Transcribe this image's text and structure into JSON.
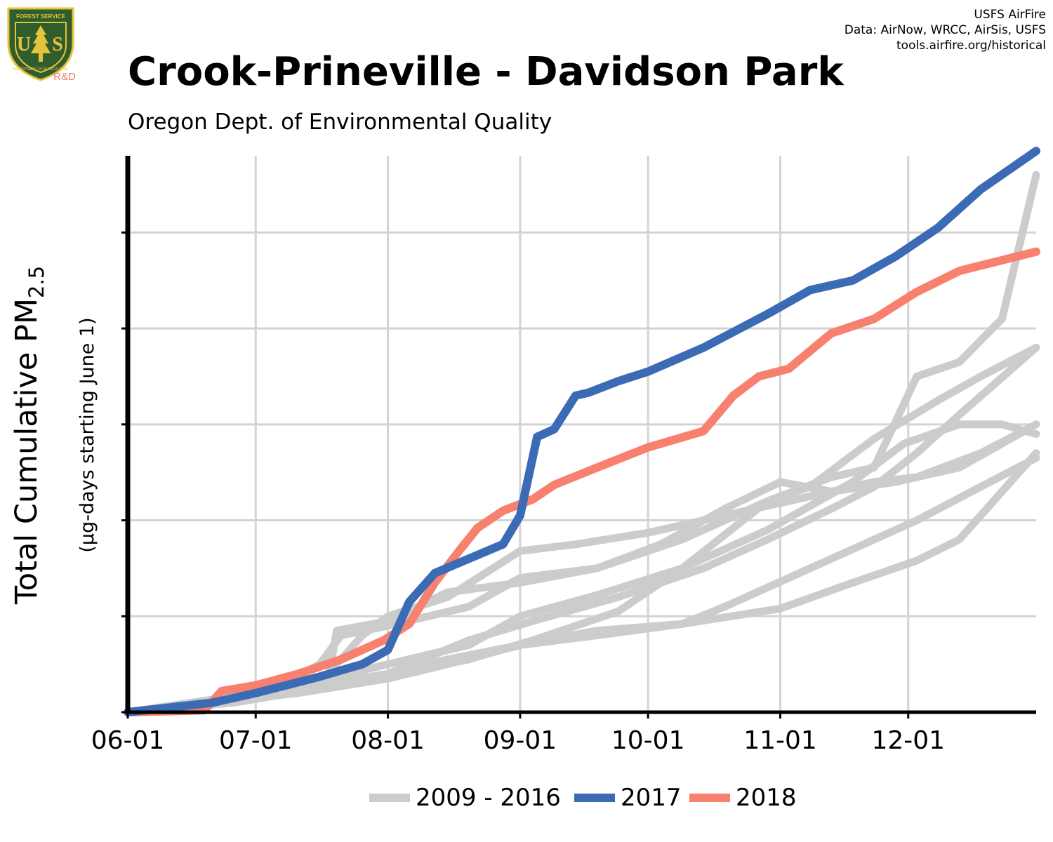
{
  "credits": {
    "line1": "USFS AirFire",
    "line2": "Data: AirNow, WRCC, AirSis, USFS",
    "line3": "tools.airfire.org/historical"
  },
  "logo": {
    "top_text": "FOREST SERVICE",
    "letters": "US",
    "bottom_text": "DEPARTMENT OF AGRICULTURE",
    "badge": "R&D"
  },
  "title": "Crook-Prineville - Davidson Park",
  "subtitle": "Oregon Dept. of Environmental Quality",
  "colors": {
    "history": "#cccccc",
    "y2017": "#3a6bb4",
    "y2018": "#f8806e",
    "grid": "#d3d3d3",
    "axis": "#000000"
  },
  "chart_data": {
    "type": "line",
    "title": "Crook-Prineville - Davidson Park",
    "subtitle": "Oregon Dept. of Environmental Quality",
    "ylabel_main": "Total Cumulative PM",
    "ylabel_sub": "2.5",
    "ylabel_unit": "(µg-days starting June 1)",
    "xlabel": "",
    "x_tick_labels": [
      "06-01",
      "07-01",
      "08-01",
      "09-01",
      "10-01",
      "11-01",
      "12-01"
    ],
    "x_tick_days": [
      0,
      30,
      61,
      92,
      122,
      153,
      183
    ],
    "xlim_days": [
      0,
      213
    ],
    "y_tick_values": [
      0,
      1,
      2,
      3,
      4,
      5,
      6
    ],
    "y_tick_labels_visible": false,
    "ylim": [
      0,
      5.8
    ],
    "grid": true,
    "legend_position": "bottom",
    "legend": [
      {
        "label": "2009 - 2016",
        "color": "#cccccc"
      },
      {
        "label": "2017",
        "color": "#3a6bb4"
      },
      {
        "label": "2018",
        "color": "#f8806e"
      }
    ],
    "series": [
      {
        "name": "2009 - 2016",
        "group": "history",
        "x": [
          0,
          15,
          30,
          45,
          55,
          61,
          75,
          92,
          105,
          122,
          130,
          140,
          153,
          165,
          180,
          195,
          205,
          213
        ],
        "y": [
          0,
          0.1,
          0.2,
          0.3,
          0.8,
          1.0,
          1.2,
          1.68,
          1.75,
          1.87,
          1.95,
          2.05,
          2.18,
          2.3,
          2.4,
          2.55,
          2.8,
          3.0
        ]
      },
      {
        "name": "2009 - 2016",
        "group": "history",
        "x": [
          0,
          20,
          40,
          61,
          75,
          92,
          110,
          130,
          153,
          170,
          185,
          195,
          213
        ],
        "y": [
          0,
          0.1,
          0.25,
          0.4,
          0.55,
          0.7,
          0.8,
          0.92,
          1.08,
          1.35,
          1.58,
          1.8,
          2.7
        ]
      },
      {
        "name": "2009 - 2016",
        "group": "history",
        "x": [
          0,
          25,
          45,
          61,
          80,
          95,
          115,
          135,
          150,
          165,
          175,
          185,
          195,
          213
        ],
        "y": [
          0,
          0.1,
          0.25,
          0.4,
          0.75,
          0.95,
          1.2,
          1.5,
          1.8,
          2.12,
          2.35,
          2.7,
          3.1,
          3.8
        ]
      },
      {
        "name": "2009 - 2016",
        "group": "history",
        "x": [
          0,
          20,
          40,
          61,
          80,
          92,
          110,
          130,
          150,
          170,
          182,
          195,
          205,
          213
        ],
        "y": [
          0,
          0.12,
          0.28,
          0.5,
          0.7,
          1.0,
          1.22,
          1.5,
          1.9,
          2.4,
          2.8,
          3.0,
          3.0,
          2.9
        ]
      },
      {
        "name": "2009 - 2016",
        "group": "history",
        "x": [
          0,
          20,
          40,
          61,
          75,
          92,
          110,
          130,
          140,
          155,
          170,
          185,
          200,
          213
        ],
        "y": [
          0,
          0.1,
          0.2,
          0.35,
          0.5,
          0.7,
          0.85,
          0.92,
          1.1,
          1.4,
          1.7,
          2.0,
          2.35,
          2.65
        ]
      },
      {
        "name": "2009 - 2016",
        "group": "history",
        "x": [
          0,
          20,
          40,
          61,
          80,
          95,
          115,
          130,
          150,
          160,
          175,
          190,
          200,
          213
        ],
        "y": [
          0,
          0.1,
          0.22,
          0.38,
          0.55,
          0.75,
          1.05,
          1.5,
          2.2,
          2.35,
          2.85,
          3.25,
          3.5,
          3.8
        ]
      },
      {
        "name": "2009 - 2016",
        "group": "history",
        "x": [
          0,
          20,
          35,
          45,
          50,
          61,
          80,
          92,
          110,
          130,
          150,
          165,
          175,
          185,
          195,
          205,
          213
        ],
        "y": [
          0,
          0.1,
          0.25,
          0.5,
          0.8,
          0.9,
          1.1,
          1.4,
          1.5,
          1.8,
          2.2,
          2.45,
          2.55,
          3.5,
          3.65,
          4.1,
          5.6
        ]
      },
      {
        "name": "2009 - 2016",
        "group": "history",
        "x": [
          0,
          20,
          40,
          47,
          49,
          61,
          75,
          92,
          110,
          125,
          140,
          153,
          165,
          175,
          185,
          200,
          213
        ],
        "y": [
          0,
          0.1,
          0.25,
          0.35,
          0.85,
          0.95,
          1.25,
          1.35,
          1.5,
          1.75,
          2.12,
          2.4,
          2.3,
          2.4,
          2.45,
          2.7,
          3.0
        ]
      },
      {
        "name": "2017",
        "group": "y2017",
        "x": [
          0,
          10,
          20,
          30,
          45,
          55,
          61,
          66,
          72,
          80,
          88,
          92,
          96,
          100,
          105,
          108,
          115,
          122,
          135,
          150,
          160,
          170,
          180,
          190,
          200,
          213
        ],
        "y": [
          0,
          0.05,
          0.1,
          0.2,
          0.37,
          0.5,
          0.65,
          1.15,
          1.45,
          1.6,
          1.75,
          2.05,
          2.87,
          2.95,
          3.3,
          3.33,
          3.45,
          3.55,
          3.8,
          4.15,
          4.4,
          4.5,
          4.75,
          5.05,
          5.45,
          5.85
        ]
      },
      {
        "name": "2018",
        "group": "y2018",
        "x": [
          0,
          18,
          22,
          30,
          40,
          50,
          60,
          66,
          72,
          78,
          82,
          88,
          95,
          100,
          110,
          122,
          135,
          142,
          148,
          155,
          165,
          175,
          185,
          195,
          213
        ],
        "y": [
          0,
          0.02,
          0.22,
          0.28,
          0.4,
          0.55,
          0.75,
          0.92,
          1.35,
          1.7,
          1.92,
          2.1,
          2.22,
          2.37,
          2.55,
          2.76,
          2.93,
          3.3,
          3.5,
          3.58,
          3.95,
          4.1,
          4.38,
          4.6,
          4.8
        ]
      }
    ]
  }
}
